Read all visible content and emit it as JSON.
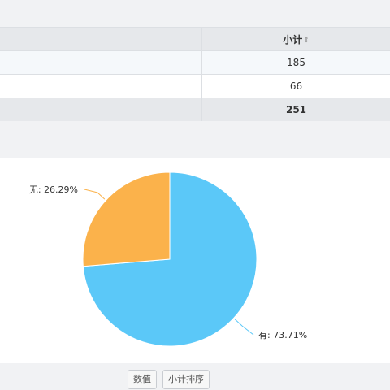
{
  "table": {
    "header": {
      "first": "",
      "subtotal": "小计",
      "sort_symbol": "⇕"
    },
    "rows": [
      {
        "label": "",
        "value": "185"
      },
      {
        "label": "",
        "value": "66"
      }
    ],
    "total": {
      "label": "",
      "value": "251"
    }
  },
  "chart_data": {
    "type": "pie",
    "title": "",
    "slices": [
      {
        "label": "有",
        "value": 185,
        "percent": "73.71%",
        "color": "#5bc8f8"
      },
      {
        "label": "无",
        "value": 66,
        "percent": "26.29%",
        "color": "#fbb24b"
      }
    ],
    "data_labels": [
      "有: 73.71%",
      "无: 26.29%"
    ]
  },
  "buttons": {
    "values_label": "数值",
    "sort_label": "小计排序"
  }
}
